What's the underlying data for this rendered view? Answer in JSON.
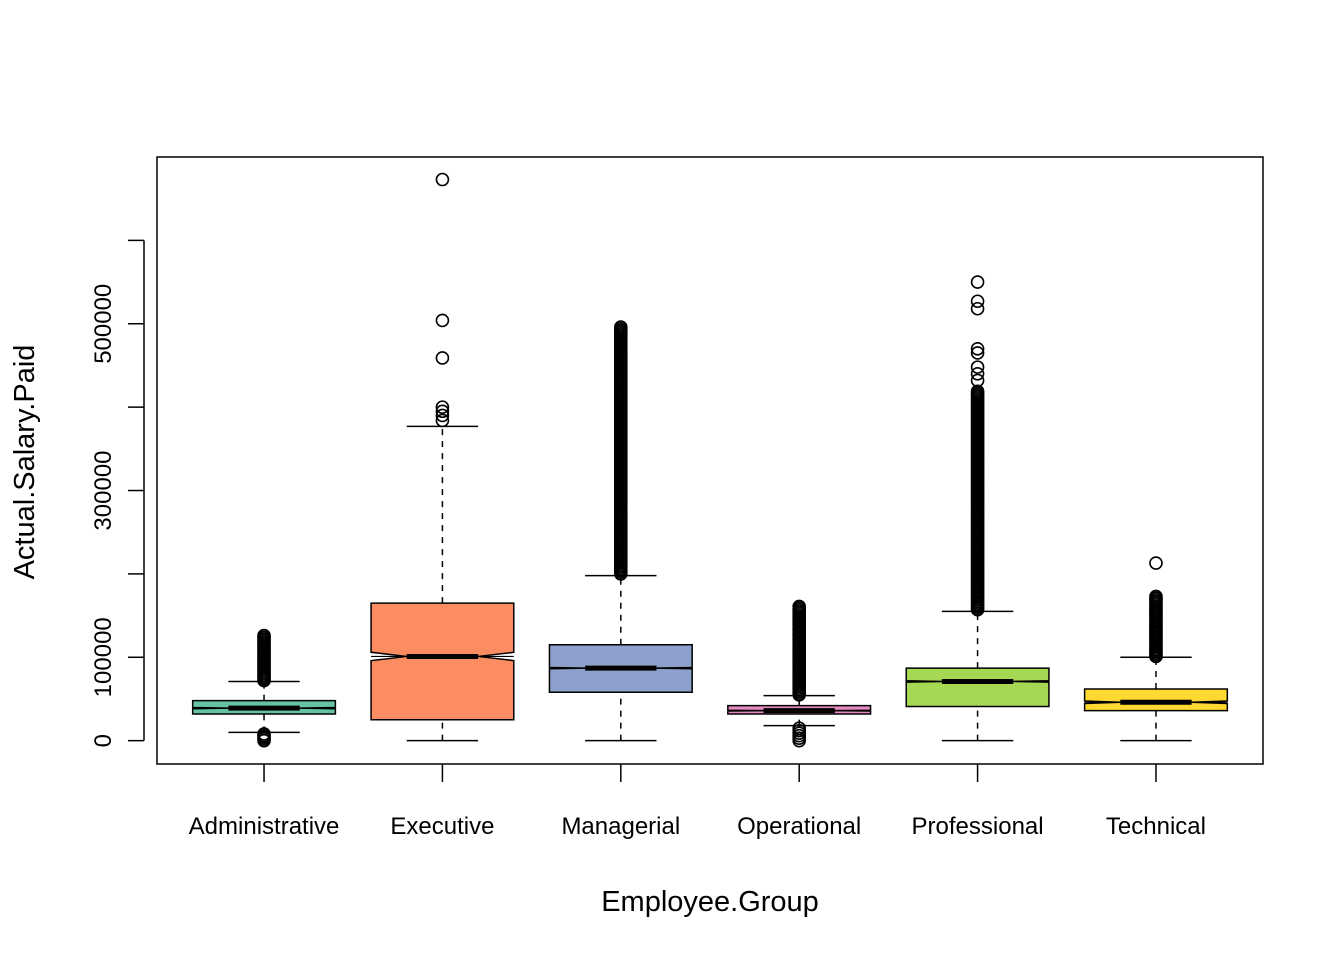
{
  "chart_data": {
    "type": "boxplot",
    "title": "",
    "xlabel": "Employee.Group",
    "ylabel": "Actual.Salary.Paid",
    "ylim": [
      -28000,
      700000
    ],
    "yticks": [
      0,
      100000,
      200000,
      300000,
      400000,
      500000,
      600000
    ],
    "ytick_labels": [
      "0",
      "100000",
      "",
      "300000",
      "",
      "500000",
      ""
    ],
    "notched": true,
    "grid": false,
    "legend": "none",
    "categories": [
      "Administrative",
      "Executive",
      "Managerial",
      "Operational",
      "Professional",
      "Technical"
    ],
    "boxes": [
      {
        "name": "Administrative",
        "color": "#66C2A5",
        "whisker_low": 10000,
        "q1": 32000,
        "median": 39000,
        "q3": 48000,
        "whisker_high": 71000,
        "notch_halfwidth": 800,
        "outliers_low": [
          0,
          2000,
          4000,
          6000,
          8000
        ],
        "outliers_high_from": 72000,
        "outliers_high_to": 127000
      },
      {
        "name": "Executive",
        "color": "#FC8D62",
        "whisker_low": 0,
        "q1": 25000,
        "median": 101000,
        "q3": 165000,
        "whisker_high": 377000,
        "notch_halfwidth": 5000,
        "outliers_low": [],
        "outliers_high": [
          384000,
          390000,
          395000,
          400000,
          459000,
          504000,
          673000
        ]
      },
      {
        "name": "Managerial",
        "color": "#8DA0CB",
        "whisker_low": 0,
        "q1": 58000,
        "median": 87000,
        "q3": 115000,
        "whisker_high": 198000,
        "notch_halfwidth": 800,
        "outliers_low": [],
        "outliers_high_from": 200000,
        "outliers_high_to": 497000
      },
      {
        "name": "Operational",
        "color": "#E78AC3",
        "whisker_low": 18000,
        "q1": 32000,
        "median": 36000,
        "q3": 42000,
        "whisker_high": 54000,
        "notch_halfwidth": 500,
        "outliers_low": [
          0,
          3000,
          6000,
          9000,
          12000,
          15000
        ],
        "outliers_high_from": 55000,
        "outliers_high_to": 161000
      },
      {
        "name": "Professional",
        "color": "#A6D854",
        "whisker_low": 0,
        "q1": 41000,
        "median": 71000,
        "q3": 87000,
        "whisker_high": 155000,
        "notch_halfwidth": 800,
        "outliers_low": [],
        "outliers_high_from": 157000,
        "outliers_high_to": 420000,
        "outliers_high_extra": [
          432000,
          440000,
          448000,
          465000,
          470000,
          518000,
          527000,
          550000
        ]
      },
      {
        "name": "Technical",
        "color": "#FFD92F",
        "whisker_low": 0,
        "q1": 36000,
        "median": 46000,
        "q3": 62000,
        "whisker_high": 100000,
        "notch_halfwidth": 1500,
        "outliers_low": [],
        "outliers_high_from": 101000,
        "outliers_high_to": 174000,
        "outliers_high_extra": [
          213000
        ]
      }
    ]
  }
}
